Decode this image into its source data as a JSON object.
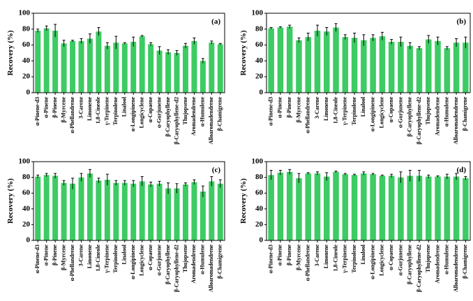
{
  "chart_data": [
    {
      "type": "bar",
      "label": "(a)",
      "ylabel": "Recovery (%)",
      "color": "#3dcb63",
      "categories": [
        "α-Pinene-d3",
        "α-Pinene",
        "β-Pinene",
        "β-Myrcene",
        "α-Phellandrene",
        "3-Carene",
        "Limonene",
        "1,8-Cineole",
        "γ-Terpinene",
        "Terpinolene",
        "Linalool",
        "α-Longipinene",
        "Longicyclene",
        "α-Copaene",
        "α-Gurjunene",
        "β-Caryophyllene",
        "β-Caryophyllene-d2",
        "Thujopsene",
        "Aromadendrene",
        "α-Humulene",
        "Alloaromadendrene",
        "β-Chamigrene"
      ],
      "values": [
        78,
        81,
        78,
        62,
        65,
        65,
        68,
        77,
        59,
        63,
        62,
        64,
        71,
        61,
        53,
        51,
        50,
        59,
        65,
        40,
        63,
        61
      ],
      "errors": [
        2,
        3,
        8,
        4,
        1,
        3,
        6,
        5,
        4,
        8,
        1,
        6,
        1,
        2,
        5,
        3,
        3,
        3,
        4,
        3,
        2,
        1
      ],
      "ylim": [
        0,
        100
      ],
      "yticks": [
        0,
        20,
        40,
        60,
        80,
        100
      ]
    },
    {
      "type": "bar",
      "label": "(b)",
      "ylabel": "Recovery (%)",
      "color": "#3dcb63",
      "categories": [
        "α-Pinene-d3",
        "α-Pinene",
        "β-Pinene",
        "β-Myrcene",
        "α-Phellandrene",
        "3-Carene",
        "Limonene",
        "1,8-Cineole",
        "γ-Terpinene",
        "Terpinolene",
        "Linalool",
        "α-Longipinene",
        "Longicyclene",
        "α-Copaene",
        "α-Gurjunene",
        "β-Caryophyllene",
        "β-Caryophyllene-d2",
        "Thujopsene",
        "Aromadendrene",
        "α-Humulene",
        "Alloaromadendrene",
        "β-Chamigrene"
      ],
      "values": [
        81,
        82,
        83,
        66,
        70,
        78,
        77,
        82,
        70,
        69,
        66,
        69,
        71,
        64,
        64,
        59,
        56,
        67,
        65,
        56,
        63,
        63
      ],
      "errors": [
        1,
        1,
        2,
        3,
        5,
        7,
        5,
        5,
        3,
        6,
        7,
        4,
        5,
        3,
        6,
        4,
        2,
        5,
        5,
        2,
        5,
        7
      ],
      "ylim": [
        0,
        100
      ],
      "yticks": [
        0,
        20,
        40,
        60,
        80,
        100
      ]
    },
    {
      "type": "bar",
      "label": "(c)",
      "ylabel": "Recovery (%)",
      "color": "#3dcb63",
      "categories": [
        "α-Pinene-d3",
        "α-Pinene",
        "β-Pinene",
        "β-Myrcene",
        "α-Phellandrene",
        "3-Carene",
        "Limonene",
        "1,8-Cineole",
        "γ-Terpinene",
        "Terpinolene",
        "Linalool",
        "α-Longipinene",
        "Longicyclene",
        "α-Copaene",
        "α-Gurjunene",
        "β-Caryophyllene",
        "β-Caryophyllene-d2",
        "Thujopsene",
        "Aromadendrene",
        "α-Humulene",
        "Alloaromadendrene",
        "β-Chamigrene"
      ],
      "values": [
        81,
        83,
        82,
        73,
        72,
        80,
        85,
        76,
        77,
        73,
        73,
        72,
        75,
        71,
        72,
        66,
        66,
        71,
        74,
        62,
        75,
        72
      ],
      "errors": [
        2,
        2,
        3,
        3,
        7,
        5,
        5,
        3,
        7,
        3,
        3,
        4,
        6,
        3,
        3,
        7,
        6,
        2,
        3,
        7,
        6,
        5
      ],
      "ylim": [
        0,
        100
      ],
      "yticks": [
        0,
        20,
        40,
        60,
        80,
        100
      ]
    },
    {
      "type": "bar",
      "label": "(d)",
      "ylabel": "Recovery (%)",
      "color": "#3dcb63",
      "categories": [
        "α-Pinene-d3",
        "α-Pinene",
        "β-Pinene",
        "β-Myrcene",
        "α-Phellandrene",
        "3-Carene",
        "Limonene",
        "1,8-Cineole",
        "γ-Terpinene",
        "Terpinolene",
        "Linalool",
        "α-Longipinene",
        "Longicyclene",
        "α-Copaene",
        "α-Gurjunene",
        "β-Caryophyllene",
        "β-Caryophyllene-d2",
        "Thujopsene",
        "Aromadendrene",
        "α-Humulene",
        "Alloaromadendrene",
        "β-Chamigrene"
      ],
      "values": [
        83,
        86,
        87,
        79,
        85,
        85,
        81,
        87,
        84,
        83,
        85,
        84,
        82,
        82,
        80,
        82,
        82,
        81,
        81,
        81,
        81,
        79
      ],
      "errors": [
        6,
        3,
        3,
        6,
        1,
        2,
        5,
        1,
        1,
        1,
        2,
        1,
        1,
        2,
        7,
        7,
        7,
        2,
        1,
        3,
        4,
        2
      ],
      "ylim": [
        0,
        100
      ],
      "yticks": [
        0,
        20,
        40,
        60,
        80,
        100
      ]
    }
  ]
}
